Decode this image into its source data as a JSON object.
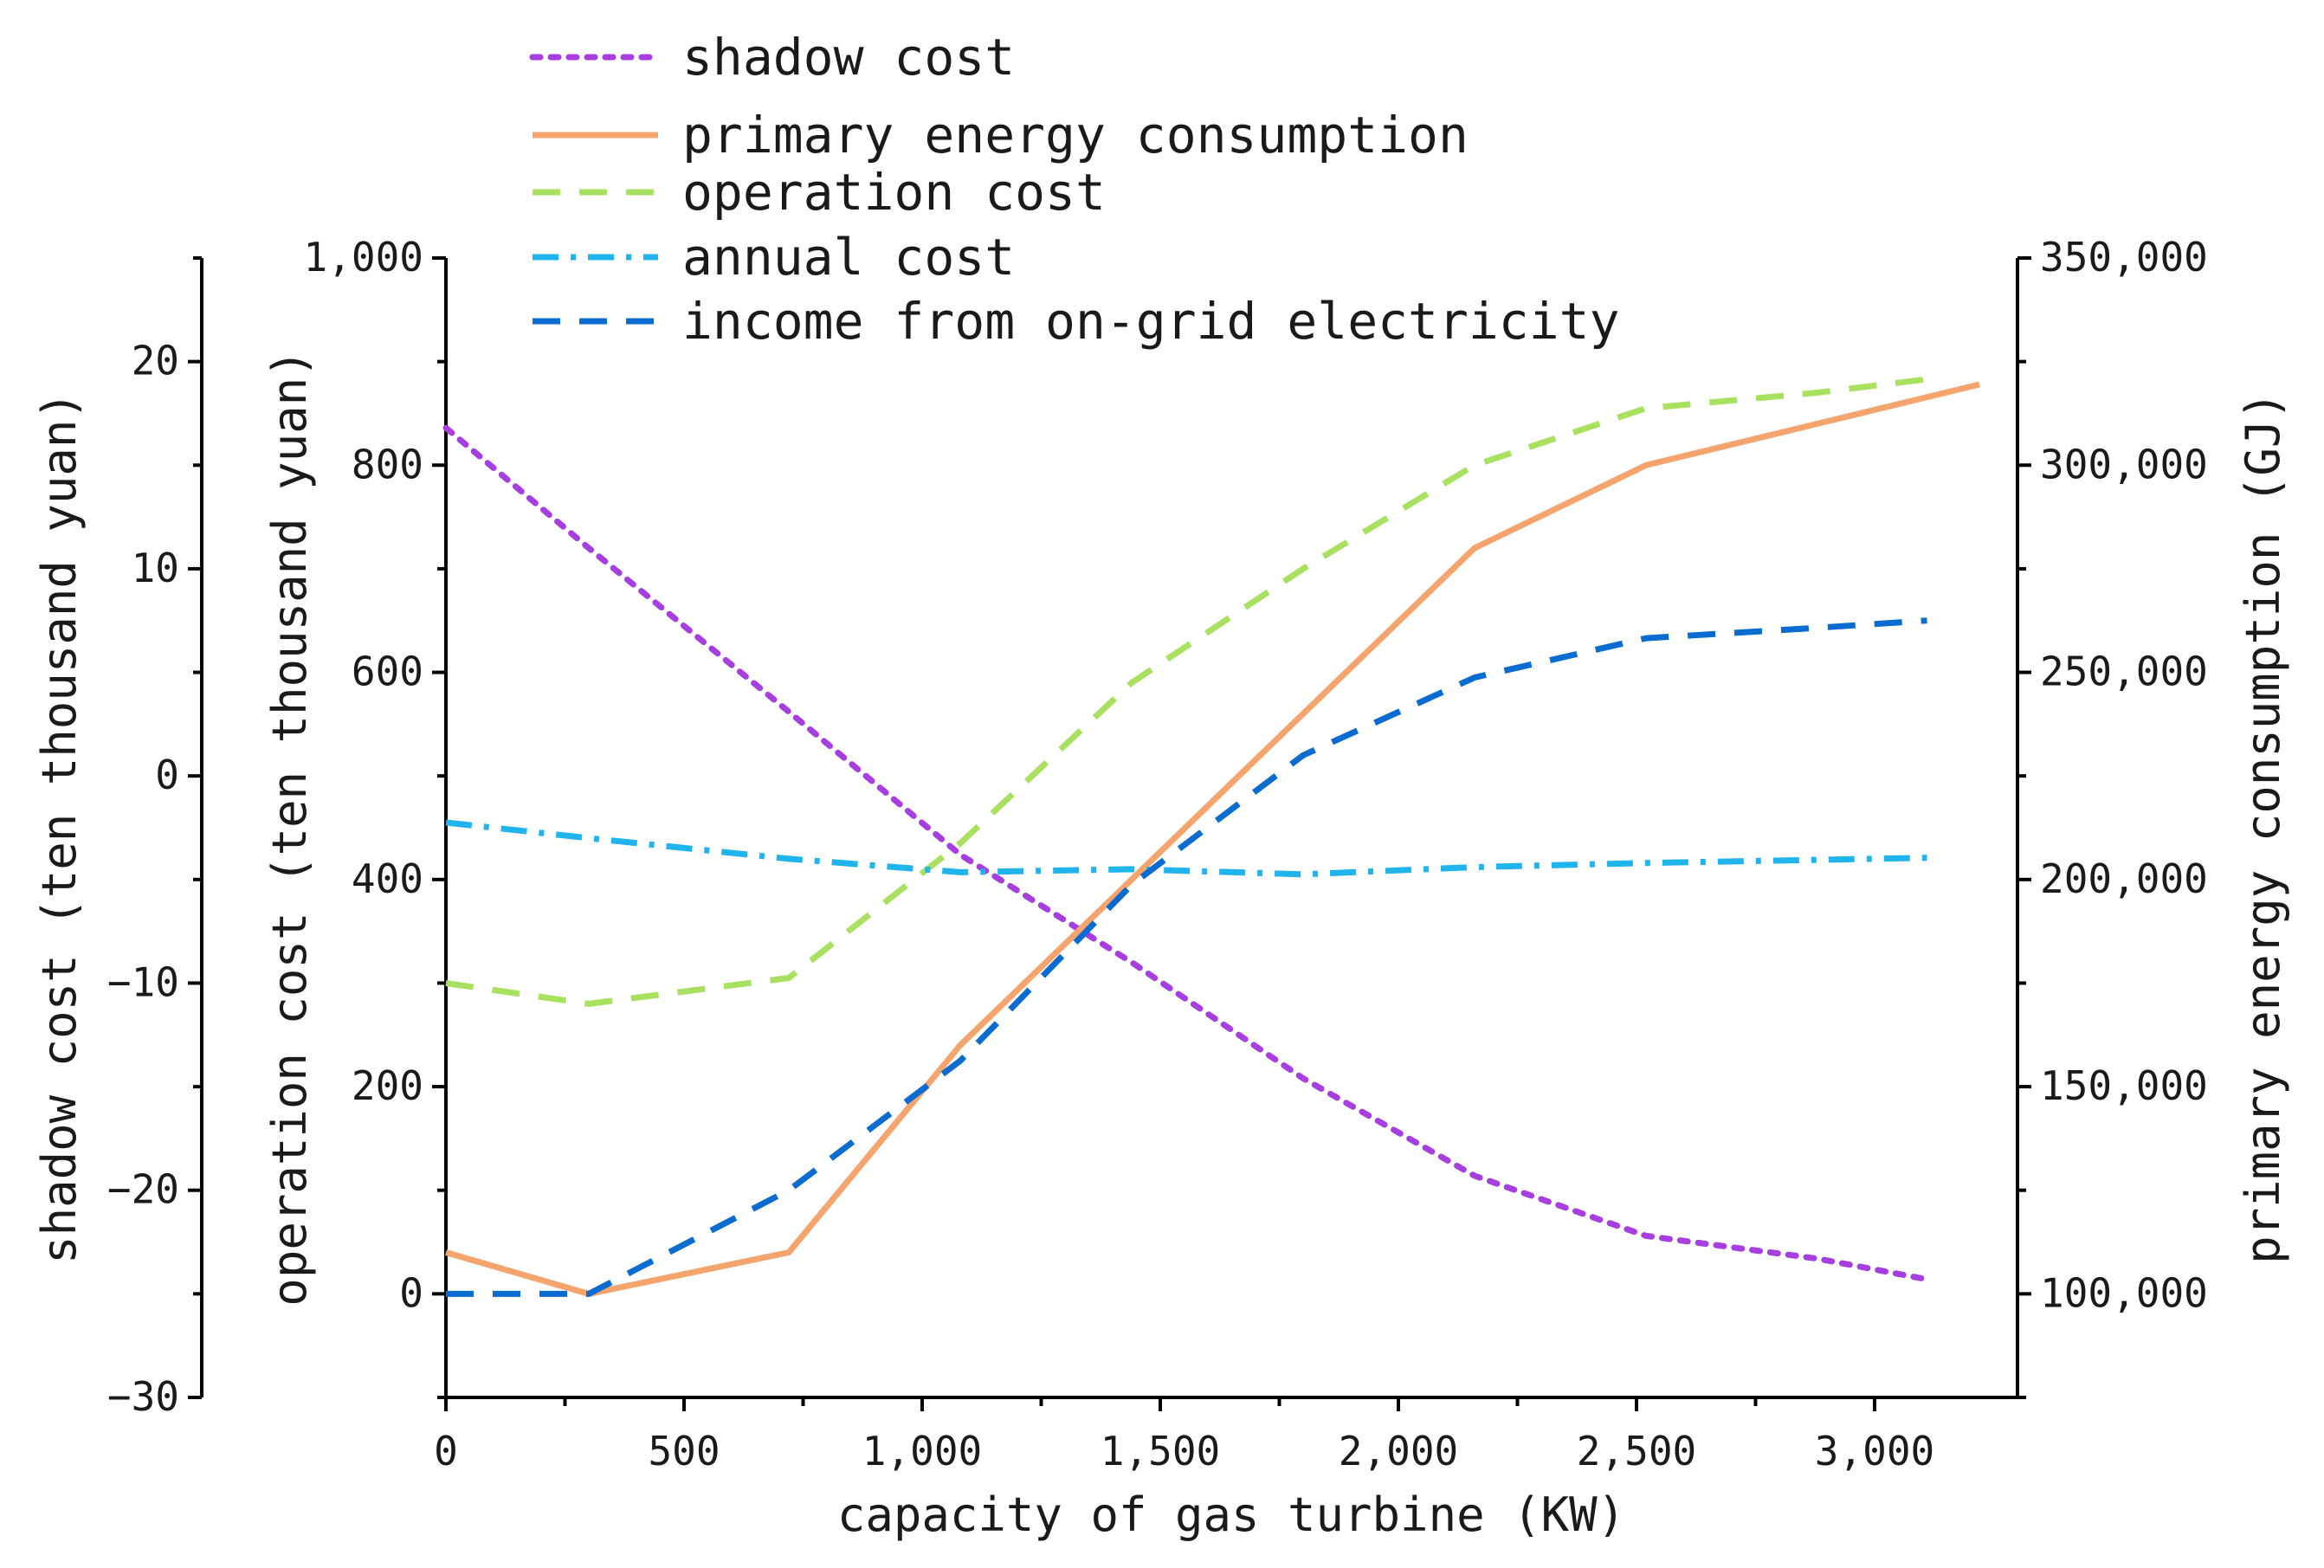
{
  "chart_data": {
    "type": "line",
    "title": "",
    "xlabel": "capacity of gas turbine (KW)",
    "xlim": [
      0,
      3300
    ],
    "xticks": [
      0,
      500,
      1000,
      1500,
      2000,
      2500,
      3000
    ],
    "xtick_labels": [
      "0",
      "500",
      "1,000",
      "1,500",
      "2,000",
      "2,500",
      "3,000"
    ],
    "axes": {
      "shadow": {
        "label": "shadow cost (ten thousand yuan)",
        "ylim": [
          -30,
          25
        ],
        "ticks": [
          -30,
          -20,
          -10,
          0,
          10,
          20
        ],
        "tick_labels": [
          "−30",
          "−20",
          "−10",
          "0",
          "10",
          "20"
        ]
      },
      "cost": {
        "label": "operation cost (ten thousand yuan)",
        "ylim": [
          -100,
          1000
        ],
        "ticks": [
          0,
          200,
          400,
          600,
          800,
          1000
        ],
        "tick_labels": [
          "0",
          "200",
          "400",
          "600",
          "800",
          "1,000"
        ]
      },
      "energy": {
        "label": "primary energy consumption (GJ)",
        "ylim": [
          75000,
          350000
        ],
        "ticks": [
          100000,
          150000,
          200000,
          250000,
          300000,
          350000
        ],
        "tick_labels": [
          "100,000",
          "150,000",
          "200,000",
          "250,000",
          "300,000",
          "350,000"
        ]
      }
    },
    "legend_position": "top-left",
    "series": [
      {
        "name": "shadow cost",
        "axis": "shadow",
        "color": "#a63ee0",
        "dash": "dotted",
        "x": [
          0,
          300,
          720,
          1080,
          1440,
          1800,
          2160,
          2520,
          2880,
          3110
        ],
        "values": [
          16.8,
          11,
          3.1,
          -3.8,
          -9,
          -14.6,
          -19.3,
          -22.2,
          -23.3,
          -24.3
        ]
      },
      {
        "name": "primary energy consumption",
        "axis": "energy",
        "color": "#f4a46c",
        "dash": "solid",
        "x": [
          0,
          300,
          720,
          1080,
          1440,
          1800,
          2160,
          2520,
          2880,
          3220
        ],
        "values": [
          110000,
          100000,
          110000,
          160000,
          200000,
          240000,
          280000,
          300000,
          310000,
          319500
        ]
      },
      {
        "name": "operation cost",
        "axis": "cost",
        "color": "#a8e060",
        "dash": "dashed",
        "x": [
          0,
          300,
          720,
          1080,
          1440,
          1800,
          2160,
          2520,
          2880,
          3110
        ],
        "values": [
          300,
          280,
          305,
          435,
          590,
          700,
          800,
          855,
          870,
          883
        ]
      },
      {
        "name": "annual cost",
        "axis": "cost",
        "color": "#1fb4ec",
        "dash": "dashdot",
        "x": [
          0,
          300,
          720,
          1080,
          1440,
          1800,
          2160,
          2520,
          2880,
          3110
        ],
        "values": [
          455,
          440,
          420,
          407,
          410,
          405,
          412,
          416,
          419,
          421
        ]
      },
      {
        "name": "income from on-grid electricity",
        "axis": "cost",
        "color": "#0a6cd0",
        "dash": "dashed",
        "x": [
          0,
          300,
          720,
          1080,
          1440,
          1800,
          2160,
          2520,
          2880,
          3110
        ],
        "values": [
          0,
          0,
          100,
          225,
          395,
          520,
          595,
          633,
          643,
          650
        ]
      }
    ]
  }
}
